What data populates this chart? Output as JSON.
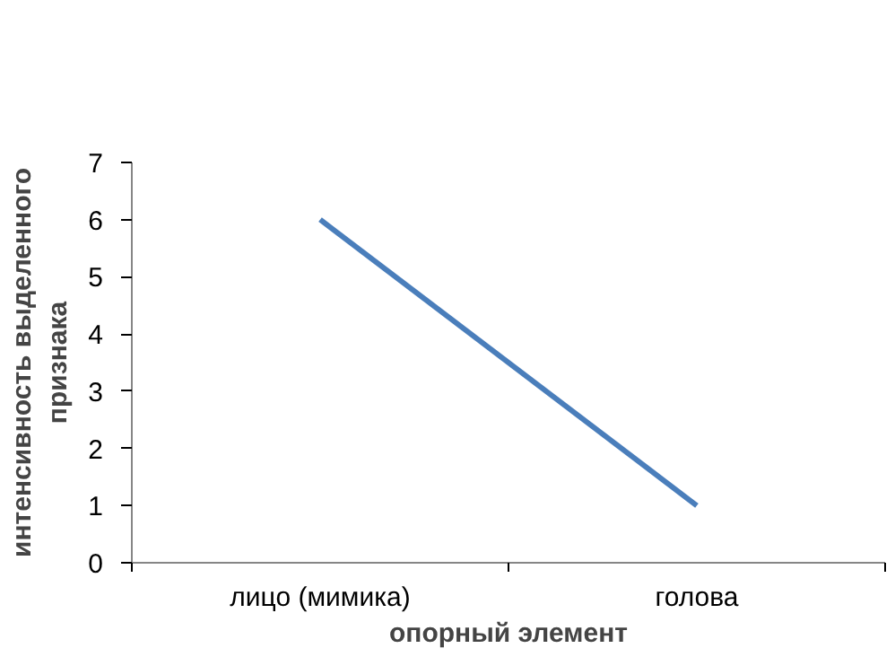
{
  "chart_data": {
    "type": "line",
    "categories": [
      "лицо (мимика)",
      "голова"
    ],
    "series": [
      {
        "color": "#4a7ebb",
        "values": [
          6,
          1
        ]
      }
    ],
    "ylim": [
      0,
      7
    ],
    "yticks": [
      0,
      1,
      2,
      3,
      4,
      5,
      6,
      7
    ],
    "grid": false,
    "marker": "none",
    "line_style": "solid",
    "xlabel": "опорный элемент",
    "ylabel": "интенсивность выделенного признака"
  }
}
